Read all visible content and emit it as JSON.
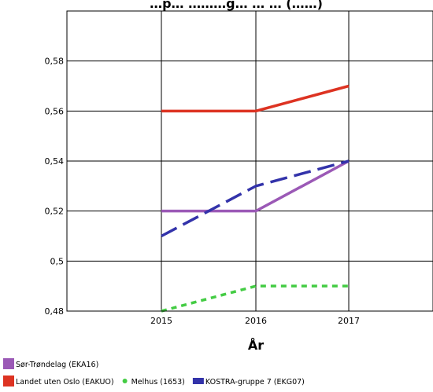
{
  "chart_data": {
    "type": "line",
    "title": "…p… ………g… … … (……)",
    "xlabel": "År",
    "ylabel": "",
    "x": [
      2015,
      2016,
      2017
    ],
    "x_tick_labels": [
      "2015",
      "2016",
      "2017"
    ],
    "ylim": [
      0.48,
      0.6
    ],
    "y_ticks": [
      0.48,
      0.5,
      0.52,
      0.54,
      0.56,
      0.58
    ],
    "y_tick_labels": [
      "0,48",
      "0,5",
      "0,52",
      "0,54",
      "0,56",
      "0,58"
    ],
    "grid": true,
    "legend_position": "bottom",
    "series": [
      {
        "name": "Sør-Trøndelag (EKA16)",
        "values": [
          0.52,
          0.52,
          0.54
        ],
        "color": "#9b59b6",
        "style": "solid",
        "marker": "square"
      },
      {
        "name": "Landet uten Oslo (EAKUO)",
        "values": [
          0.56,
          0.56,
          0.57
        ],
        "color": "#dd3322",
        "style": "solid",
        "marker": "square"
      },
      {
        "name": "Melhus (1653)",
        "values": [
          0.48,
          0.49,
          0.49
        ],
        "color": "#44cc44",
        "style": "dotted",
        "marker": "dot"
      },
      {
        "name": "KOSTRA-gruppe 7 (EKG07)",
        "values": [
          0.51,
          0.53,
          0.54
        ],
        "color": "#3333aa",
        "style": "dashed",
        "marker": "square"
      }
    ]
  }
}
